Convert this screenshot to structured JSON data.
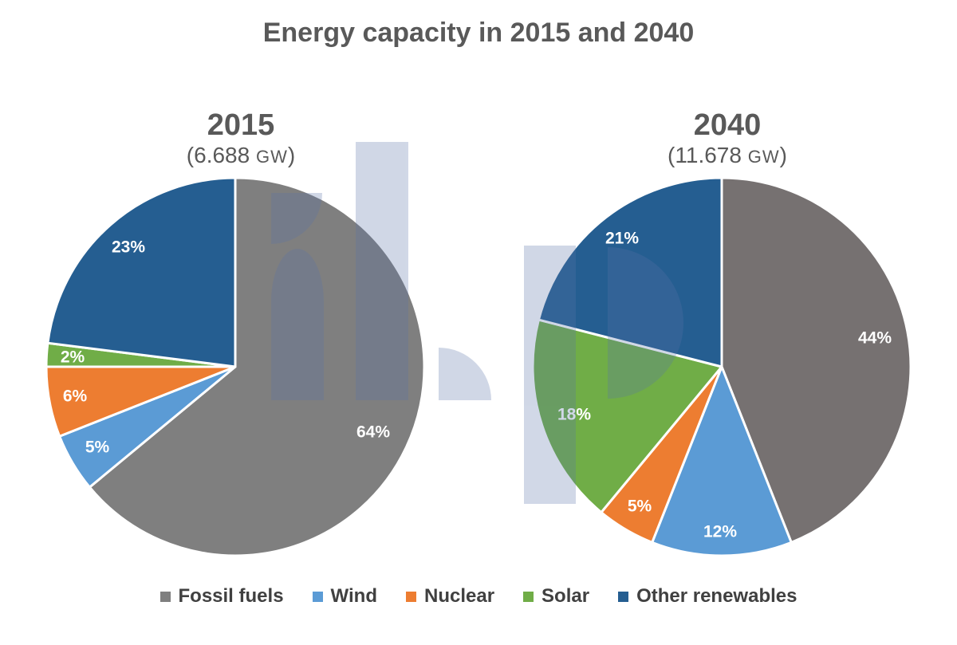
{
  "colors": {
    "fossil": "#7f7f7f",
    "wind": "#5b9bd5",
    "nuclear": "#ed7d31",
    "solar": "#70ad47",
    "other": "#255e91",
    "fossil_2040": "#767171"
  },
  "chart_data": {
    "type": "pie",
    "title": "Energy capacity in 2015 and 2040",
    "categories": [
      "Fossil fuels",
      "Wind",
      "Nuclear",
      "Solar",
      "Other renewables"
    ],
    "pies": [
      {
        "year": "2015",
        "total_value": "6.688",
        "total_unit": "GW",
        "values": [
          64,
          5,
          6,
          2,
          23
        ],
        "labels": [
          "64%",
          "5%",
          "6%",
          "2%",
          "23%"
        ]
      },
      {
        "year": "2040",
        "total_value": "11.678",
        "total_unit": "GW",
        "values": [
          44,
          12,
          5,
          18,
          21
        ],
        "labels": [
          "44%",
          "12%",
          "5%",
          "18%",
          "21%"
        ]
      }
    ]
  }
}
